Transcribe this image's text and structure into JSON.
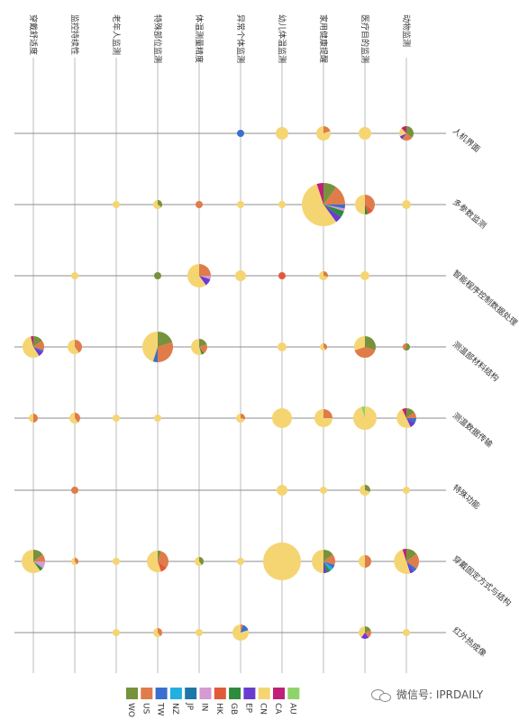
{
  "chart_data": {
    "type": "scatter",
    "title": "",
    "columns": [
      "穿戴舒适度",
      "监控持续性",
      "老年人监测",
      "特殊部位监测",
      "体温测量精度",
      "异常个体监测",
      "幼儿体温监测",
      "家用健康提醒",
      "医疗目的监测",
      "动物监测"
    ],
    "rows": [
      "人机界面",
      "多参数监测",
      "智能程序控制数据处理",
      "测温部材料结构",
      "测温数据传输",
      "特殊功能",
      "穿戴固定方式与结构",
      "红外热成像"
    ],
    "legend": [
      "WO",
      "US",
      "TW",
      "NZ",
      "JP",
      "IN",
      "HK",
      "GB",
      "EP",
      "CN",
      "CA",
      "AU"
    ],
    "colors": {
      "WO": "#76923c",
      "US": "#e07b4a",
      "TW": "#3a6fce",
      "NZ": "#22b0e0",
      "JP": "#1f77a8",
      "IN": "#d39bd1",
      "HK": "#e05a3a",
      "GB": "#2e8b3e",
      "EP": "#6a3bd0",
      "CN": "#f5d572",
      "CA": "#c0207a",
      "AU": "#8fd46a"
    },
    "points": [
      {
        "row": 0,
        "col": 5,
        "radius": 4,
        "slices": {
          "TW": 1
        }
      },
      {
        "row": 0,
        "col": 6,
        "radius": 7,
        "slices": {
          "CN": 1
        }
      },
      {
        "row": 0,
        "col": 7,
        "radius": 8,
        "slices": {
          "CN": 0.8,
          "US": 0.2
        }
      },
      {
        "row": 0,
        "col": 8,
        "radius": 7,
        "slices": {
          "CN": 1
        }
      },
      {
        "row": 0,
        "col": 9,
        "radius": 8,
        "slices": {
          "WO": 0.35,
          "CN": 0.2,
          "CA": 0.12,
          "EP": 0.08,
          "US": 0.25
        }
      },
      {
        "row": 1,
        "col": 2,
        "radius": 4,
        "slices": {
          "CN": 1
        }
      },
      {
        "row": 1,
        "col": 3,
        "radius": 5,
        "slices": {
          "WO": 0.35,
          "CN": 0.65
        }
      },
      {
        "row": 1,
        "col": 4,
        "radius": 4,
        "slices": {
          "US": 1
        }
      },
      {
        "row": 1,
        "col": 5,
        "radius": 4,
        "slices": {
          "CN": 1
        }
      },
      {
        "row": 1,
        "col": 6,
        "radius": 4,
        "slices": {
          "CN": 1
        }
      },
      {
        "row": 1,
        "col": 7,
        "radius": 24,
        "slices": {
          "CN": 0.55,
          "US": 0.15,
          "WO": 0.1,
          "CA": 0.05,
          "GB": 0.05,
          "EP": 0.05,
          "TW": 0.03,
          "IN": 0.02
        }
      },
      {
        "row": 1,
        "col": 8,
        "radius": 11,
        "slices": {
          "CN": 0.5,
          "US": 0.35,
          "GB": 0.05,
          "HK": 0.1
        }
      },
      {
        "row": 1,
        "col": 9,
        "radius": 5,
        "slices": {
          "CN": 1
        }
      },
      {
        "row": 2,
        "col": 1,
        "radius": 4,
        "slices": {
          "CN": 1
        }
      },
      {
        "row": 2,
        "col": 3,
        "radius": 4,
        "slices": {
          "WO": 1
        }
      },
      {
        "row": 2,
        "col": 4,
        "radius": 13,
        "slices": {
          "CN": 0.6,
          "US": 0.25,
          "EP": 0.1,
          "IN": 0.05
        }
      },
      {
        "row": 2,
        "col": 5,
        "radius": 6,
        "slices": {
          "CN": 1
        }
      },
      {
        "row": 2,
        "col": 6,
        "radius": 4,
        "slices": {
          "HK": 1
        }
      },
      {
        "row": 2,
        "col": 7,
        "radius": 5,
        "slices": {
          "CN": 0.7,
          "US": 0.3
        }
      },
      {
        "row": 2,
        "col": 8,
        "radius": 5,
        "slices": {
          "CN": 1
        }
      },
      {
        "row": 3,
        "col": 0,
        "radius": 12,
        "slices": {
          "CN": 0.55,
          "US": 0.15,
          "WO": 0.15,
          "EP": 0.08,
          "CA": 0.04,
          "TW": 0.03
        }
      },
      {
        "row": 3,
        "col": 1,
        "radius": 8,
        "slices": {
          "CN": 0.6,
          "US": 0.4
        }
      },
      {
        "row": 3,
        "col": 3,
        "radius": 17,
        "slices": {
          "CN": 0.45,
          "US": 0.3,
          "WO": 0.2,
          "TW": 0.05
        }
      },
      {
        "row": 3,
        "col": 4,
        "radius": 9,
        "slices": {
          "CN": 0.55,
          "US": 0.2,
          "WO": 0.2,
          "GB": 0.05
        }
      },
      {
        "row": 3,
        "col": 6,
        "radius": 5,
        "slices": {
          "CN": 1
        }
      },
      {
        "row": 3,
        "col": 7,
        "radius": 4,
        "slices": {
          "CN": 0.6,
          "US": 0.4
        }
      },
      {
        "row": 3,
        "col": 8,
        "radius": 12,
        "slices": {
          "CN": 0.3,
          "US": 0.4,
          "WO": 0.3
        }
      },
      {
        "row": 3,
        "col": 9,
        "radius": 4,
        "slices": {
          "WO": 0.6,
          "US": 0.4
        }
      },
      {
        "row": 4,
        "col": 0,
        "radius": 5,
        "slices": {
          "CN": 0.5,
          "US": 0.5
        }
      },
      {
        "row": 4,
        "col": 1,
        "radius": 6,
        "slices": {
          "CN": 0.6,
          "US": 0.4
        }
      },
      {
        "row": 4,
        "col": 2,
        "radius": 4,
        "slices": {
          "CN": 1
        }
      },
      {
        "row": 4,
        "col": 3,
        "radius": 4,
        "slices": {
          "CN": 1
        }
      },
      {
        "row": 4,
        "col": 5,
        "radius": 5,
        "slices": {
          "CN": 0.7,
          "US": 0.3
        }
      },
      {
        "row": 4,
        "col": 6,
        "radius": 11,
        "slices": {
          "CN": 1
        }
      },
      {
        "row": 4,
        "col": 7,
        "radius": 10,
        "slices": {
          "CN": 0.75,
          "US": 0.25
        }
      },
      {
        "row": 4,
        "col": 8,
        "radius": 13,
        "slices": {
          "CN": 0.95,
          "AU": 0.05
        }
      },
      {
        "row": 4,
        "col": 9,
        "radius": 11,
        "slices": {
          "CN": 0.5,
          "WO": 0.15,
          "EP": 0.1,
          "TW": 0.08,
          "CA": 0.07,
          "US": 0.1
        }
      },
      {
        "row": 5,
        "col": 1,
        "radius": 4,
        "slices": {
          "US": 1
        }
      },
      {
        "row": 5,
        "col": 6,
        "radius": 6,
        "slices": {
          "CN": 1
        }
      },
      {
        "row": 5,
        "col": 7,
        "radius": 4,
        "slices": {
          "CN": 1
        }
      },
      {
        "row": 5,
        "col": 8,
        "radius": 6,
        "slices": {
          "CN": 0.7,
          "WO": 0.3
        }
      },
      {
        "row": 5,
        "col": 9,
        "radius": 4,
        "slices": {
          "CN": 1
        }
      },
      {
        "row": 6,
        "col": 0,
        "radius": 13,
        "slices": {
          "CN": 0.6,
          "WO": 0.15,
          "US": 0.1,
          "IN": 0.1,
          "GB": 0.05
        }
      },
      {
        "row": 6,
        "col": 1,
        "radius": 4,
        "slices": {
          "CN": 0.6,
          "US": 0.4
        }
      },
      {
        "row": 6,
        "col": 2,
        "radius": 4,
        "slices": {
          "CN": 1
        }
      },
      {
        "row": 6,
        "col": 3,
        "radius": 12,
        "slices": {
          "CN": 0.55,
          "US": 0.3,
          "HK": 0.1,
          "WO": 0.05
        }
      },
      {
        "row": 6,
        "col": 4,
        "radius": 5,
        "slices": {
          "CN": 0.6,
          "WO": 0.4
        }
      },
      {
        "row": 6,
        "col": 5,
        "radius": 4,
        "slices": {
          "CN": 1
        }
      },
      {
        "row": 6,
        "col": 6,
        "radius": 21,
        "slices": {
          "CN": 1
        }
      },
      {
        "row": 6,
        "col": 7,
        "radius": 13,
        "slices": {
          "CN": 0.5,
          "US": 0.15,
          "WO": 0.15,
          "NZ": 0.05,
          "TW": 0.05,
          "GB": 0.05,
          "EP": 0.05
        }
      },
      {
        "row": 6,
        "col": 8,
        "radius": 7,
        "slices": {
          "CN": 0.5,
          "US": 0.5
        }
      },
      {
        "row": 6,
        "col": 9,
        "radius": 14,
        "slices": {
          "CN": 0.5,
          "US": 0.2,
          "WO": 0.15,
          "EP": 0.05,
          "TW": 0.05,
          "CA": 0.05
        }
      },
      {
        "row": 7,
        "col": 2,
        "radius": 4,
        "slices": {
          "CN": 1
        }
      },
      {
        "row": 7,
        "col": 3,
        "radius": 5,
        "slices": {
          "CN": 0.6,
          "US": 0.4
        }
      },
      {
        "row": 7,
        "col": 4,
        "radius": 4,
        "slices": {
          "CN": 1
        }
      },
      {
        "row": 7,
        "col": 5,
        "radius": 9,
        "slices": {
          "CN": 0.8,
          "TW": 0.15,
          "US": 0.05
        }
      },
      {
        "row": 7,
        "col": 8,
        "radius": 7,
        "slices": {
          "CN": 0.4,
          "EP": 0.2,
          "WO": 0.2,
          "US": 0.2
        }
      },
      {
        "row": 7,
        "col": 9,
        "radius": 4,
        "slices": {
          "CN": 1
        }
      }
    ]
  },
  "watermark": {
    "text": "微信号: IPRDAILY",
    "icon": "wechat-icon"
  }
}
